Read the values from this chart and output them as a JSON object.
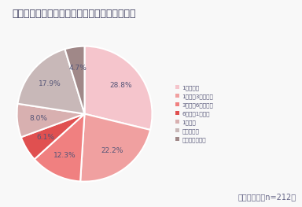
{
  "title": "ペットロスの症状はどのくらい続きましたか？",
  "note": "（単一回答、n=212）",
  "labels": [
    "1か月未満",
    "1か月～3カ月未満",
    "3か月～6カ月未満",
    "6か月～1年未満",
    "1年以上",
    "分からない",
    "まだ続いている"
  ],
  "values": [
    28.8,
    22.2,
    12.3,
    6.1,
    8.0,
    17.9,
    4.7
  ],
  "colors": [
    "#f5c5cc",
    "#f0a0a0",
    "#f08080",
    "#e05050",
    "#d8b0b0",
    "#c8b8b8",
    "#a08888"
  ],
  "startangle": 90,
  "background_color": "#f8f8f8",
  "title_color": "#3a3a5c",
  "label_color": "#555577",
  "pct_color": "#555577",
  "note_color": "#666688"
}
